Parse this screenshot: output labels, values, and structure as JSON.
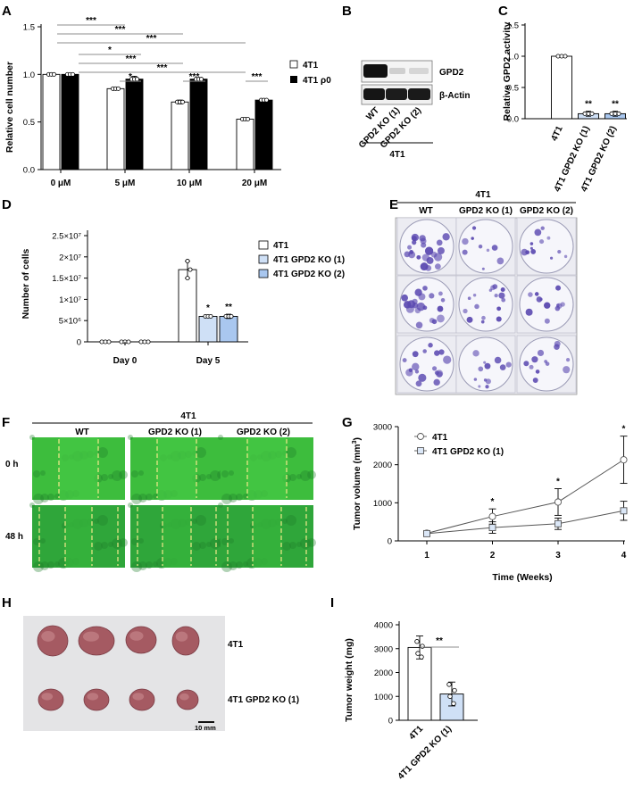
{
  "panels": {
    "A": {
      "label": "A"
    },
    "B": {
      "label": "B"
    },
    "C": {
      "label": "C"
    },
    "D": {
      "label": "D"
    },
    "E": {
      "label": "E"
    },
    "F": {
      "label": "F"
    },
    "G": {
      "label": "G"
    },
    "H": {
      "label": "H"
    },
    "I": {
      "label": "I"
    }
  },
  "panelA": {
    "ylabel": "Relative cell number",
    "yticks": [
      "0.0",
      "0.5",
      "1.0",
      "1.5"
    ],
    "legend": [
      "4T1",
      "4T1 ρ0"
    ],
    "sigs": [
      "***",
      "***",
      "***",
      "*",
      "***",
      "***",
      "*",
      "***",
      "***"
    ]
  },
  "panelB": {
    "bands": [
      "GPD2",
      "β-Actin"
    ],
    "lanes": [
      "WT",
      "GPD2 KO (1)",
      "GPD2 KO (2)"
    ],
    "group": "4T1"
  },
  "panelC": {
    "ylabel": "Relative GPD2 activity",
    "sigs": [
      "**",
      "**"
    ]
  },
  "panelD": {
    "ylabel": "Number of cells",
    "sigs": [
      "*",
      "**"
    ]
  },
  "panelE": {
    "group": "4T1",
    "cols": [
      "WT",
      "GPD2 KO (1)",
      "GPD2 KO (2)"
    ]
  },
  "panelF": {
    "group": "4T1",
    "cols": [
      "WT",
      "GPD2 KO (1)",
      "GPD2 KO (2)"
    ],
    "rows": [
      "0 h",
      "48 h"
    ]
  },
  "panelG": {
    "ylabel": "Tumor volume (mm",
    "ylabel_sup": "3",
    "ylabel_close": ")",
    "sigs": [
      "*",
      "*",
      "*"
    ]
  },
  "panelH": {
    "rows": [
      "4T1",
      "4T1 GPD2 KO (1)"
    ],
    "scale": "10 mm"
  },
  "panelI": {
    "ylabel": "Tumor weight (mg)",
    "sig": "**"
  },
  "chart_data": [
    {
      "id": "A",
      "type": "bar",
      "title": "",
      "xlabel": "",
      "ylabel": "Relative cell number",
      "ylim": [
        0,
        1.5
      ],
      "categories": [
        "0 μM",
        "5 μM",
        "10 μM",
        "20 μM"
      ],
      "series": [
        {
          "name": "4T1",
          "color": "#ffffff",
          "values": [
            1.0,
            0.85,
            0.71,
            0.53
          ],
          "errors": [
            0.01,
            0.01,
            0.02,
            0.01
          ]
        },
        {
          "name": "4T1 ρ0",
          "color": "#000000",
          "values": [
            1.0,
            0.95,
            0.95,
            0.73
          ],
          "errors": [
            0.01,
            0.03,
            0.01,
            0.01
          ]
        }
      ]
    },
    {
      "id": "C",
      "type": "bar",
      "title": "",
      "ylabel": "Relative GPD2 activity",
      "ylim": [
        0,
        1.5
      ],
      "yticks": [
        "0.0",
        "0.5",
        "1.0",
        "1.5"
      ],
      "categories": [
        "4T1",
        "4T1 GPD2 KO (1)",
        "4T1 GPD2 KO (2)"
      ],
      "values": [
        1.0,
        0.08,
        0.08
      ],
      "errors": [
        0.0,
        0.04,
        0.04
      ],
      "colors": [
        "#ffffff",
        "#cfe0f6",
        "#a9c7ef"
      ]
    },
    {
      "id": "D",
      "type": "bar",
      "title": "",
      "ylabel": "Number of cells",
      "ylim": [
        0,
        25000000
      ],
      "yticks": [
        "0",
        "5×10⁶",
        "1×10⁷",
        "1.5×10⁷",
        "2×10⁷",
        "2.5×10⁷"
      ],
      "categories": [
        "Day 0",
        "Day 5"
      ],
      "series": [
        {
          "name": "4T1",
          "color": "#ffffff",
          "values": [
            0,
            17000000
          ],
          "errors": [
            0,
            2000000
          ]
        },
        {
          "name": "4T1 GPD2 KO (1)",
          "color": "#cfe0f6",
          "values": [
            0,
            6000000
          ],
          "errors": [
            0,
            300000
          ]
        },
        {
          "name": "4T1 GPD2 KO (2)",
          "color": "#a9c7ef",
          "values": [
            0,
            6000000
          ],
          "errors": [
            0,
            500000
          ]
        }
      ]
    },
    {
      "id": "G",
      "type": "line",
      "title": "",
      "xlabel": "Time (Weeks)",
      "ylabel": "Tumor volume (mm3)",
      "ylim": [
        0,
        3000
      ],
      "x": [
        1,
        2,
        3,
        4
      ],
      "yticks": [
        "0",
        "1000",
        "2000",
        "3000"
      ],
      "series": [
        {
          "name": "4T1",
          "marker": "circle",
          "values": [
            200,
            640,
            1020,
            2130
          ],
          "errors": [
            60,
            200,
            350,
            620
          ]
        },
        {
          "name": "4T1 GPD2 KO (1)",
          "marker": "square",
          "values": [
            190,
            350,
            450,
            790
          ],
          "errors": [
            50,
            150,
            150,
            250
          ]
        }
      ]
    },
    {
      "id": "I",
      "type": "bar",
      "title": "",
      "ylabel": "Tumor weight (mg)",
      "ylim": [
        0,
        4000
      ],
      "yticks": [
        "0",
        "1000",
        "2000",
        "3000",
        "4000"
      ],
      "categories": [
        "4T1",
        "4T1 GPD2 KO (1)"
      ],
      "values": [
        3050,
        1100
      ],
      "errors": [
        480,
        500
      ],
      "colors": [
        "#ffffff",
        "#cfe0f6"
      ]
    }
  ]
}
